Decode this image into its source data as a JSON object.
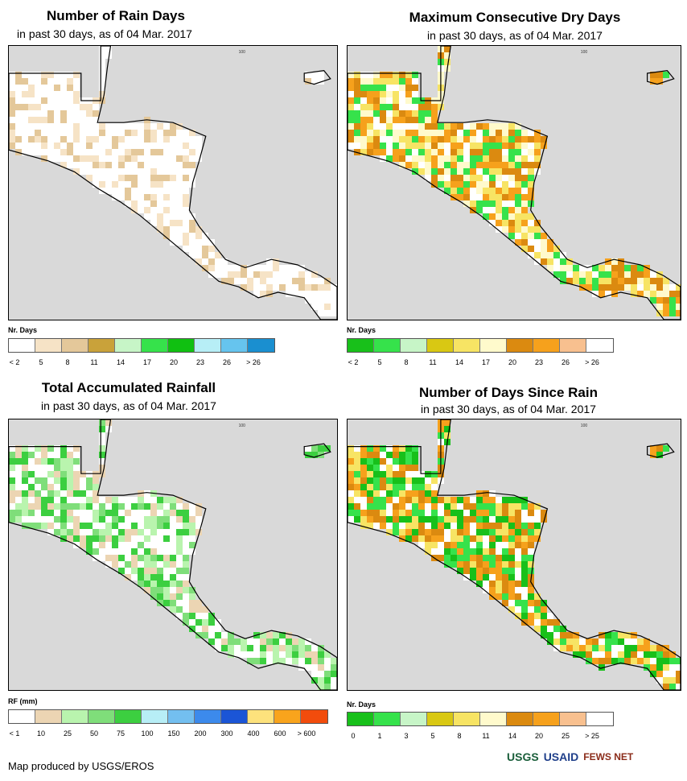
{
  "panels": [
    {
      "title": "Number of Rain Days",
      "subtitle": "in past 30 days, as of 04 Mar. 2017",
      "legend_title": "Nr. Days",
      "legend_colors": [
        "#ffffff",
        "#f6e3c6",
        "#e4c89a",
        "#c9a23a",
        "#c7f5c7",
        "#36e24b",
        "#10c011",
        "#b7eef6",
        "#66c4ee",
        "#1a8fd0"
      ],
      "legend_ticks": [
        "< 2",
        "5",
        "8",
        "11",
        "14",
        "17",
        "20",
        "23",
        "26",
        "> 26"
      ],
      "ocean_label": "100"
    },
    {
      "title": "Maximum Consecutive Dry Days",
      "subtitle": "in past 30 days, as of 04 Mar. 2017",
      "legend_title": "Nr. Days",
      "legend_colors": [
        "#18c01a",
        "#36e24b",
        "#c7f5c7",
        "#d9c813",
        "#f7e464",
        "#fffacc",
        "#db8a10",
        "#f6a11c",
        "#f8c08f",
        "#ffffff"
      ],
      "legend_ticks": [
        "< 2",
        "5",
        "8",
        "11",
        "14",
        "17",
        "20",
        "23",
        "26",
        "> 26"
      ],
      "ocean_label": "100"
    },
    {
      "title": "Total Accumulated Rainfall",
      "subtitle": "in past 30 days, as of 04 Mar. 2017",
      "legend_title": "RF (mm)",
      "legend_colors": [
        "#ffffff",
        "#ecd5b3",
        "#b9f4ae",
        "#7fde7a",
        "#3ccf40",
        "#b7eef6",
        "#73bff0",
        "#3c8aec",
        "#1b55d6",
        "#fde27c",
        "#f9a41c",
        "#f24c0c"
      ],
      "legend_ticks": [
        "< 1",
        "10",
        "25",
        "50",
        "75",
        "100",
        "150",
        "200",
        "300",
        "400",
        "600",
        "> 600"
      ],
      "ocean_label": "100"
    },
    {
      "title": "Number of Days Since Rain",
      "subtitle": "in past 30 days, as of 04 Mar. 2017",
      "legend_title": "Nr. Days",
      "legend_colors": [
        "#18c01a",
        "#36e24b",
        "#c7f5c7",
        "#d9c813",
        "#f7e464",
        "#fffacc",
        "#db8a10",
        "#f6a11c",
        "#f8c08f",
        "#ffffff"
      ],
      "legend_ticks": [
        "0",
        "1",
        "3",
        "5",
        "8",
        "11",
        "14",
        "20",
        "25",
        "> 25"
      ],
      "ocean_label": "100"
    }
  ],
  "footer": "Map produced by USGS/EROS",
  "logos": [
    "USGS",
    "USAID",
    "FEWS NET"
  ]
}
